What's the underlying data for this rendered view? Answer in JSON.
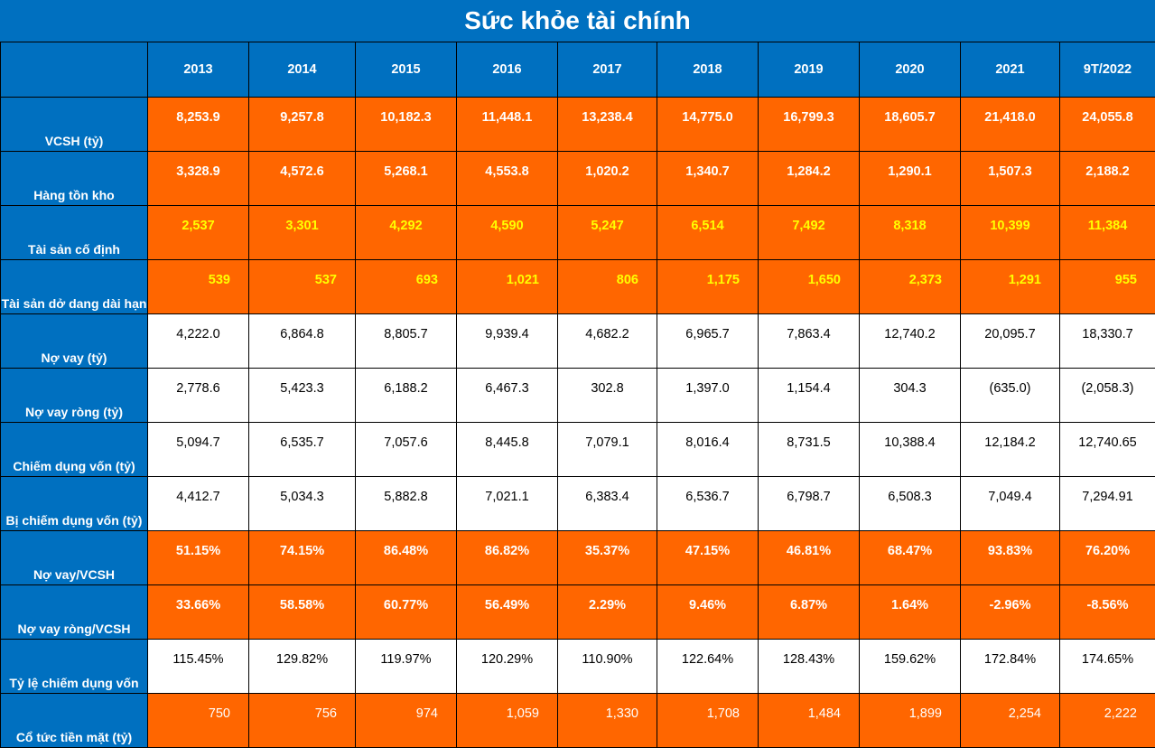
{
  "title": "Sức khỏe tài chính",
  "years": [
    "2013",
    "2014",
    "2015",
    "2016",
    "2017",
    "2018",
    "2019",
    "2020",
    "2021",
    "9T/2022"
  ],
  "rows": [
    {
      "label": "VCSH (tỷ)",
      "style": "orange",
      "align": "c",
      "values": [
        "8,253.9",
        "9,257.8",
        "10,182.3",
        "11,448.1",
        "13,238.4",
        "14,775.0",
        "16,799.3",
        "18,605.7",
        "21,418.0",
        "24,055.8"
      ]
    },
    {
      "label": "Hàng tồn kho",
      "style": "orange",
      "align": "c",
      "values": [
        "3,328.9",
        "4,572.6",
        "5,268.1",
        "4,553.8",
        "1,020.2",
        "1,340.7",
        "1,284.2",
        "1,290.1",
        "1,507.3",
        "2,188.2"
      ]
    },
    {
      "label": "Tài sản cố định",
      "style": "orange yellow",
      "align": "c",
      "values": [
        "2,537",
        "3,301",
        "4,292",
        "4,590",
        "5,247",
        "6,514",
        "7,492",
        "8,318",
        "10,399",
        "11,384"
      ]
    },
    {
      "label": "Tài sản dở dang dài hạn",
      "style": "orange yellow",
      "align": "r",
      "values": [
        "539",
        "537",
        "693",
        "1,021",
        "806",
        "1,175",
        "1,650",
        "2,373",
        "1,291",
        "955"
      ]
    },
    {
      "label": "Nợ vay (tỷ)",
      "style": "white",
      "align": "c",
      "values": [
        "4,222.0",
        "6,864.8",
        "8,805.7",
        "9,939.4",
        "4,682.2",
        "6,965.7",
        "7,863.4",
        "12,740.2",
        "20,095.7",
        "18,330.7"
      ]
    },
    {
      "label": "Nợ vay ròng (tỷ)",
      "style": "white",
      "align": "c",
      "values": [
        "2,778.6",
        "5,423.3",
        "6,188.2",
        "6,467.3",
        "302.8",
        "1,397.0",
        "1,154.4",
        "304.3",
        "(635.0)",
        "(2,058.3)"
      ]
    },
    {
      "label": "Chiếm dụng vốn (tỷ)",
      "style": "white",
      "align": "c",
      "values": [
        "5,094.7",
        "6,535.7",
        "7,057.6",
        "8,445.8",
        "7,079.1",
        "8,016.4",
        "8,731.5",
        "10,388.4",
        "12,184.2",
        "12,740.65"
      ]
    },
    {
      "label": "Bị chiếm dụng vốn (tỷ)",
      "style": "white",
      "align": "c",
      "values": [
        "4,412.7",
        "5,034.3",
        "5,882.8",
        "7,021.1",
        "6,383.4",
        "6,536.7",
        "6,798.7",
        "6,508.3",
        "7,049.4",
        "7,294.91"
      ]
    },
    {
      "label": "Nợ vay/VCSH",
      "style": "orange",
      "align": "c",
      "values": [
        "51.15%",
        "74.15%",
        "86.48%",
        "86.82%",
        "35.37%",
        "47.15%",
        "46.81%",
        "68.47%",
        "93.83%",
        "76.20%"
      ]
    },
    {
      "label": "Nợ vay ròng/VCSH",
      "style": "orange",
      "align": "c",
      "values": [
        "33.66%",
        "58.58%",
        "60.77%",
        "56.49%",
        "2.29%",
        "9.46%",
        "6.87%",
        "1.64%",
        "-2.96%",
        "-8.56%"
      ]
    },
    {
      "label": "Tỷ lệ chiếm dụng vốn",
      "style": "white",
      "align": "c",
      "values": [
        "115.45%",
        "129.82%",
        "119.97%",
        "120.29%",
        "110.90%",
        "122.64%",
        "128.43%",
        "159.62%",
        "172.84%",
        "174.65%"
      ]
    },
    {
      "label": "Cổ tức tiền mặt (tỷ)",
      "style": "orangeplain",
      "align": "r",
      "values": [
        "750",
        "756",
        "974",
        "1,059",
        "1,330",
        "1,708",
        "1,484",
        "1,899",
        "2,254",
        "2,222"
      ]
    }
  ]
}
